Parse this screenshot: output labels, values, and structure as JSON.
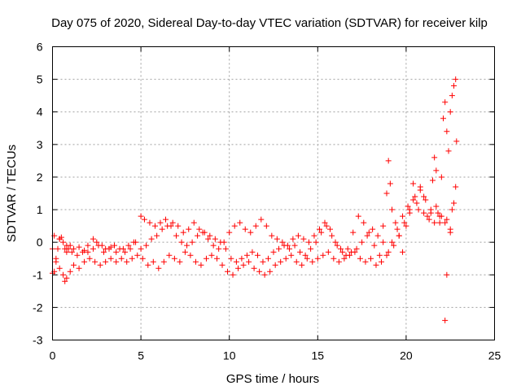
{
  "chart_data": {
    "type": "scatter",
    "title": "Day 075 of 2020, Sidereal Day-to-day VTEC variation (SDTVAR) for receiver kilp",
    "xlabel": "GPS time / hours",
    "ylabel": "SDTVAR / TECUs",
    "xlim": [
      0,
      25
    ],
    "ylim": [
      -3,
      6
    ],
    "xticks": [
      0,
      5,
      10,
      15,
      20,
      25
    ],
    "yticks": [
      -3,
      -2,
      -1,
      0,
      1,
      2,
      3,
      4,
      5,
      6
    ],
    "grid": true,
    "marker": "+",
    "series": [
      {
        "name": "SDTVAR",
        "color": "#ff0000",
        "points": [
          [
            0.0,
            -0.95
          ],
          [
            0.1,
            -0.9
          ],
          [
            0.2,
            -0.6
          ],
          [
            0.3,
            -0.2
          ],
          [
            0.4,
            0.1
          ],
          [
            0.5,
            0.15
          ],
          [
            0.6,
            0.0
          ],
          [
            0.7,
            -0.2
          ],
          [
            0.8,
            -0.3
          ],
          [
            0.9,
            -0.2
          ],
          [
            1.0,
            -0.1
          ],
          [
            1.2,
            -0.2
          ],
          [
            1.5,
            -0.15
          ],
          [
            1.8,
            -0.25
          ],
          [
            2.0,
            -0.3
          ],
          [
            2.3,
            -0.2
          ],
          [
            2.5,
            0.0
          ],
          [
            2.8,
            -0.1
          ],
          [
            3.0,
            -0.2
          ],
          [
            3.3,
            -0.15
          ],
          [
            3.6,
            -0.3
          ],
          [
            4.0,
            -0.2
          ],
          [
            4.3,
            -0.1
          ],
          [
            4.6,
            0.0
          ],
          [
            5.0,
            -0.2
          ],
          [
            5.3,
            -0.1
          ],
          [
            5.6,
            0.1
          ],
          [
            5.9,
            0.2
          ],
          [
            6.2,
            0.4
          ],
          [
            6.5,
            0.5
          ],
          [
            6.8,
            0.6
          ],
          [
            7.1,
            0.5
          ],
          [
            7.4,
            0.3
          ],
          [
            7.7,
            0.4
          ],
          [
            8.0,
            0.6
          ],
          [
            8.3,
            0.4
          ],
          [
            8.6,
            0.3
          ],
          [
            8.9,
            0.2
          ],
          [
            9.2,
            0.1
          ],
          [
            9.5,
            0.0
          ],
          [
            9.8,
            -0.2
          ],
          [
            10.1,
            -0.5
          ],
          [
            10.4,
            -0.6
          ],
          [
            10.7,
            -0.5
          ],
          [
            11.0,
            -0.4
          ],
          [
            11.3,
            -0.3
          ],
          [
            11.6,
            -0.4
          ],
          [
            11.9,
            -0.6
          ],
          [
            12.2,
            -0.5
          ],
          [
            12.5,
            -0.3
          ],
          [
            12.8,
            -0.2
          ],
          [
            13.1,
            -0.1
          ],
          [
            13.4,
            -0.2
          ],
          [
            13.7,
            -0.1
          ],
          [
            14.0,
            -0.3
          ],
          [
            14.3,
            -0.4
          ],
          [
            14.6,
            -0.2
          ],
          [
            14.9,
            0.0
          ],
          [
            15.2,
            0.3
          ],
          [
            15.5,
            0.5
          ],
          [
            15.8,
            0.2
          ],
          [
            16.1,
            -0.1
          ],
          [
            16.4,
            -0.3
          ],
          [
            16.7,
            -0.2
          ],
          [
            17.0,
            0.3
          ],
          [
            17.3,
            0.8
          ],
          [
            17.6,
            0.6
          ],
          [
            17.9,
            0.3
          ],
          [
            18.2,
            -0.1
          ],
          [
            18.5,
            -0.4
          ],
          [
            18.7,
            0.5
          ],
          [
            18.9,
            1.5
          ],
          [
            19.0,
            2.5
          ],
          [
            19.1,
            1.8
          ],
          [
            19.2,
            1.0
          ],
          [
            19.4,
            0.6
          ],
          [
            19.6,
            0.2
          ],
          [
            19.8,
            -0.3
          ],
          [
            20.0,
            0.5
          ],
          [
            20.2,
            1.0
          ],
          [
            20.4,
            1.8
          ],
          [
            20.6,
            1.2
          ],
          [
            20.8,
            1.6
          ],
          [
            21.0,
            1.4
          ],
          [
            21.2,
            0.8
          ],
          [
            21.4,
            1.0
          ],
          [
            21.5,
            1.9
          ],
          [
            21.6,
            2.6
          ],
          [
            21.7,
            2.2
          ],
          [
            21.8,
            0.9
          ],
          [
            21.9,
            0.6
          ],
          [
            22.0,
            2.0
          ],
          [
            22.1,
            3.8
          ],
          [
            22.2,
            4.3
          ],
          [
            22.3,
            3.4
          ],
          [
            22.4,
            2.8
          ],
          [
            22.5,
            4.0
          ],
          [
            22.6,
            4.5
          ],
          [
            22.7,
            4.8
          ],
          [
            22.8,
            5.0
          ],
          [
            22.85,
            3.1
          ],
          [
            22.3,
            -1.0
          ],
          [
            22.2,
            -2.4
          ],
          [
            22.5,
            0.3
          ],
          [
            22.7,
            1.2
          ],
          [
            22.8,
            1.7
          ],
          [
            0.0,
            -0.2
          ],
          [
            0.2,
            -0.5
          ],
          [
            0.4,
            -0.8
          ],
          [
            0.6,
            -1.0
          ],
          [
            0.7,
            -1.2
          ],
          [
            0.8,
            -1.1
          ],
          [
            1.0,
            -0.9
          ],
          [
            1.2,
            -0.7
          ],
          [
            1.5,
            -0.8
          ],
          [
            1.8,
            -0.6
          ],
          [
            2.1,
            -0.5
          ],
          [
            2.4,
            -0.6
          ],
          [
            2.7,
            -0.7
          ],
          [
            3.0,
            -0.6
          ],
          [
            3.3,
            -0.5
          ],
          [
            3.6,
            -0.6
          ],
          [
            3.9,
            -0.5
          ],
          [
            4.2,
            -0.6
          ],
          [
            4.5,
            -0.5
          ],
          [
            4.8,
            -0.4
          ],
          [
            5.1,
            -0.5
          ],
          [
            5.4,
            -0.7
          ],
          [
            5.7,
            -0.6
          ],
          [
            6.0,
            -0.8
          ],
          [
            6.3,
            -0.6
          ],
          [
            6.6,
            -0.4
          ],
          [
            6.9,
            -0.5
          ],
          [
            7.2,
            -0.6
          ],
          [
            7.5,
            -0.3
          ],
          [
            7.8,
            -0.4
          ],
          [
            8.1,
            -0.6
          ],
          [
            8.4,
            -0.7
          ],
          [
            8.7,
            -0.5
          ],
          [
            9.0,
            -0.4
          ],
          [
            9.3,
            -0.5
          ],
          [
            9.6,
            -0.7
          ],
          [
            9.9,
            -0.9
          ],
          [
            10.2,
            -1.0
          ],
          [
            10.5,
            -0.8
          ],
          [
            10.8,
            -0.7
          ],
          [
            11.1,
            -0.6
          ],
          [
            11.4,
            -0.8
          ],
          [
            11.7,
            -0.9
          ],
          [
            12.0,
            -1.0
          ],
          [
            12.3,
            -0.9
          ],
          [
            12.6,
            -0.7
          ],
          [
            12.9,
            -0.6
          ],
          [
            13.2,
            -0.5
          ],
          [
            13.5,
            -0.4
          ],
          [
            13.8,
            -0.6
          ],
          [
            14.1,
            -0.7
          ],
          [
            14.4,
            -0.5
          ],
          [
            14.7,
            -0.6
          ],
          [
            15.0,
            -0.5
          ],
          [
            15.3,
            -0.4
          ],
          [
            15.6,
            -0.3
          ],
          [
            15.9,
            -0.5
          ],
          [
            16.2,
            -0.6
          ],
          [
            16.5,
            -0.5
          ],
          [
            16.8,
            -0.4
          ],
          [
            17.1,
            -0.3
          ],
          [
            17.4,
            -0.5
          ],
          [
            17.7,
            -0.6
          ],
          [
            18.0,
            -0.5
          ],
          [
            18.3,
            -0.7
          ],
          [
            18.6,
            -0.6
          ],
          [
            18.9,
            -0.4
          ],
          [
            19.2,
            0.0
          ],
          [
            19.5,
            0.4
          ],
          [
            19.8,
            0.8
          ],
          [
            20.1,
            1.1
          ],
          [
            20.4,
            1.3
          ],
          [
            20.7,
            1.0
          ],
          [
            21.0,
            0.9
          ],
          [
            21.3,
            0.7
          ],
          [
            21.6,
            0.6
          ],
          [
            21.9,
            0.8
          ],
          [
            22.2,
            0.6
          ],
          [
            22.5,
            0.4
          ],
          [
            0.1,
            0.2
          ],
          [
            0.4,
            0.1
          ],
          [
            0.8,
            -0.1
          ],
          [
            1.1,
            -0.3
          ],
          [
            1.4,
            -0.4
          ],
          [
            1.7,
            -0.3
          ],
          [
            2.0,
            -0.1
          ],
          [
            2.3,
            0.1
          ],
          [
            2.6,
            -0.1
          ],
          [
            2.9,
            -0.3
          ],
          [
            3.2,
            -0.2
          ],
          [
            3.5,
            -0.1
          ],
          [
            3.8,
            -0.2
          ],
          [
            4.1,
            -0.3
          ],
          [
            4.4,
            -0.2
          ],
          [
            4.7,
            0.0
          ],
          [
            5.0,
            0.8
          ],
          [
            5.2,
            0.7
          ],
          [
            5.5,
            0.6
          ],
          [
            5.8,
            0.5
          ],
          [
            6.1,
            0.6
          ],
          [
            6.4,
            0.7
          ],
          [
            6.7,
            0.5
          ],
          [
            7.0,
            0.2
          ],
          [
            7.3,
            0.0
          ],
          [
            7.6,
            -0.1
          ],
          [
            7.9,
            0.0
          ],
          [
            8.2,
            0.2
          ],
          [
            8.5,
            0.3
          ],
          [
            8.8,
            0.1
          ],
          [
            9.1,
            -0.1
          ],
          [
            9.4,
            -0.2
          ],
          [
            9.7,
            0.0
          ],
          [
            10.0,
            0.3
          ],
          [
            10.3,
            0.5
          ],
          [
            10.6,
            0.6
          ],
          [
            10.9,
            0.4
          ],
          [
            11.2,
            0.3
          ],
          [
            11.5,
            0.5
          ],
          [
            11.8,
            0.7
          ],
          [
            12.1,
            0.5
          ],
          [
            12.4,
            0.2
          ],
          [
            12.7,
            0.1
          ],
          [
            13.0,
            0.0
          ],
          [
            13.3,
            -0.1
          ],
          [
            13.6,
            0.1
          ],
          [
            13.9,
            0.2
          ],
          [
            14.2,
            0.1
          ],
          [
            14.5,
            0.0
          ],
          [
            14.8,
            0.2
          ],
          [
            15.1,
            0.4
          ],
          [
            15.4,
            0.6
          ],
          [
            15.7,
            0.4
          ],
          [
            16.0,
            0.0
          ],
          [
            16.3,
            -0.2
          ],
          [
            16.6,
            -0.4
          ],
          [
            16.9,
            -0.3
          ],
          [
            17.2,
            -0.2
          ],
          [
            17.5,
            0.0
          ],
          [
            17.8,
            0.2
          ],
          [
            18.1,
            0.4
          ],
          [
            18.4,
            0.2
          ],
          [
            18.7,
            0.0
          ],
          [
            19.0,
            -0.3
          ],
          [
            19.3,
            -0.1
          ],
          [
            19.6,
            0.2
          ],
          [
            19.9,
            0.6
          ],
          [
            20.2,
            0.9
          ],
          [
            20.5,
            1.4
          ],
          [
            20.8,
            1.7
          ],
          [
            21.1,
            1.3
          ],
          [
            21.4,
            0.9
          ],
          [
            21.7,
            1.1
          ],
          [
            22.0,
            0.8
          ],
          [
            22.3,
            0.7
          ],
          [
            22.6,
            1.0
          ]
        ]
      }
    ]
  }
}
